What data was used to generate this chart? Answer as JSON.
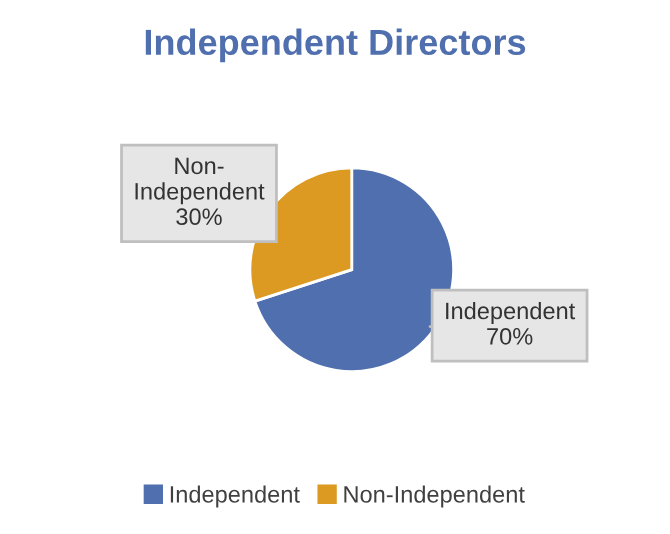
{
  "chart_data": {
    "type": "pie",
    "title": "Independent Directors",
    "categories": [
      "Independent",
      "Non-Independent"
    ],
    "values": [
      70,
      30
    ],
    "colors": [
      "#4f6fae",
      "#dc9a22"
    ],
    "value_labels": [
      "70%",
      "30%"
    ],
    "legend": "bottom"
  }
}
